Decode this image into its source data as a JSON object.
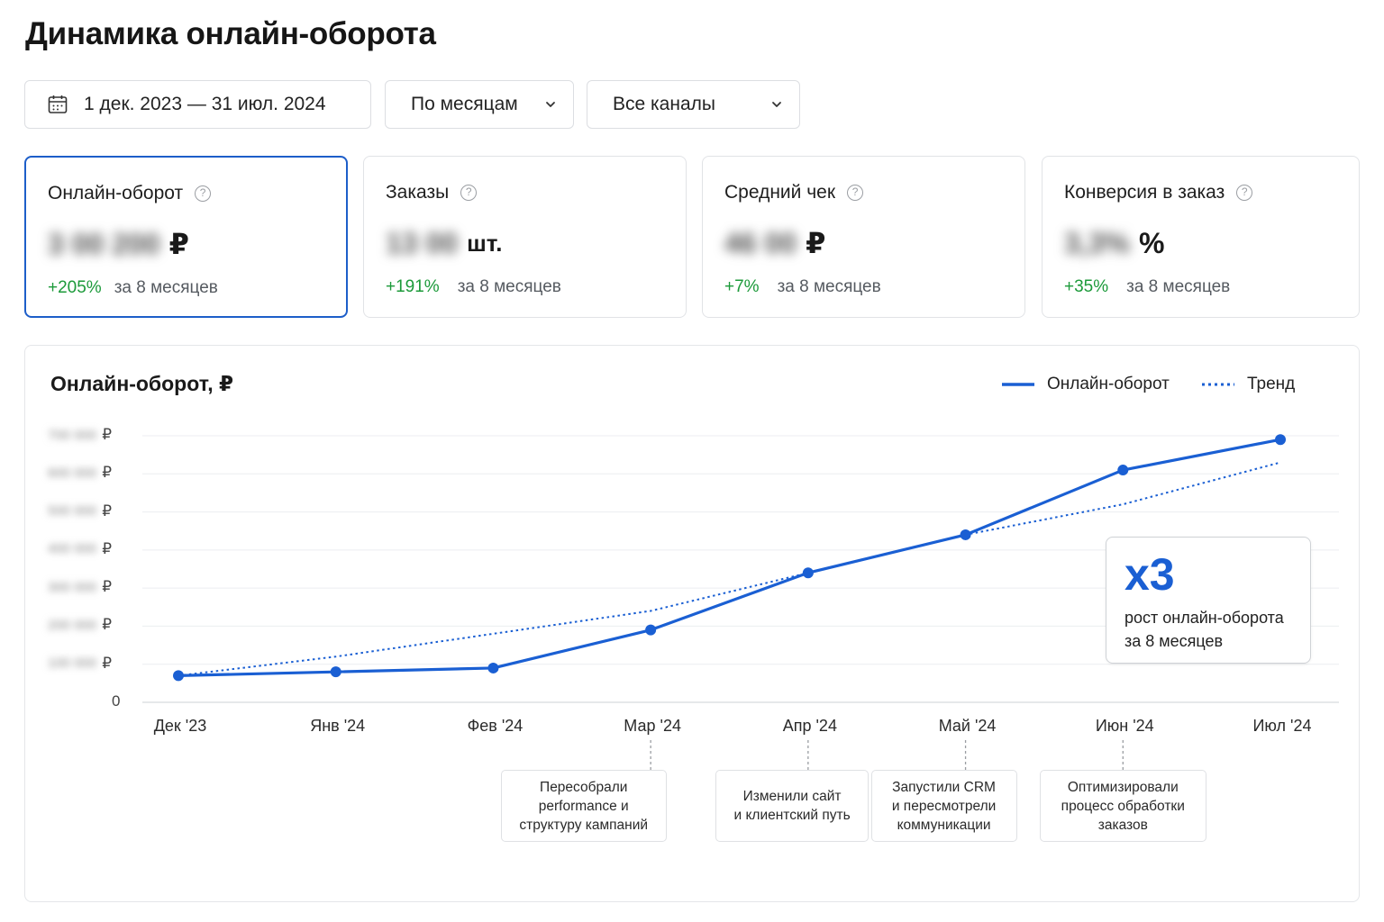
{
  "page": {
    "title": "Динамика онлайн-оборота"
  },
  "filters": {
    "date_range": "1 дек. 2023 — 31 июл. 2024",
    "period": "По месяцам",
    "channel": "Все каналы"
  },
  "kpis": [
    {
      "title": "Онлайн-оборот",
      "value_hidden": "3 00 200",
      "unit": "₽",
      "delta": "+205%",
      "period": "за 8 месяцев",
      "active": true
    },
    {
      "title": "Заказы",
      "value_hidden": "13 00",
      "unit": "шт.",
      "delta": "+191%",
      "period": "за 8 месяцев",
      "active": false
    },
    {
      "title": "Средний чек",
      "value_hidden": "46 00",
      "unit": "₽",
      "delta": "+7%",
      "period": "за 8 месяцев",
      "active": false
    },
    {
      "title": "Конверсия в заказ",
      "value_hidden": "3,3%",
      "unit": "%",
      "delta": "+35%",
      "period": "за 8 месяцев",
      "active": false
    }
  ],
  "icons": {
    "calendar": "calendar-icon",
    "chevron": "chevron-down-icon",
    "help": "help-circle-icon"
  },
  "colors": {
    "accent": "#1a5fd3",
    "positive": "#1c9a3a",
    "line": "#1a5fd3"
  },
  "chart_data": {
    "type": "line",
    "title": "Онлайн-оборот, ₽",
    "categories": [
      "Дек '23",
      "Янв '24",
      "Фев '24",
      "Мар '24",
      "Апр '24",
      "Май '24",
      "Июн '24",
      "Июл '24"
    ],
    "series": [
      {
        "name": "Онлайн-оборот",
        "style": "solid",
        "values": [
          0.7,
          0.8,
          0.9,
          1.9,
          3.4,
          4.4,
          6.1,
          6.9
        ]
      },
      {
        "name": "Тренд",
        "style": "dotted",
        "values": [
          0.7,
          1.2,
          1.8,
          2.4,
          3.4,
          4.4,
          5.2,
          6.3
        ]
      }
    ],
    "y_ticks": [
      {
        "hidden": "100 000",
        "unit": "₽"
      },
      {
        "hidden": "200 000",
        "unit": "₽"
      },
      {
        "hidden": "300 000",
        "unit": "₽"
      },
      {
        "hidden": "400 000",
        "unit": "₽"
      },
      {
        "hidden": "500 000",
        "unit": "₽"
      },
      {
        "hidden": "600 000",
        "unit": "₽"
      },
      {
        "hidden": "700 000",
        "unit": "₽"
      }
    ],
    "y_zero": "0",
    "ylim": [
      0,
      7
    ],
    "grid": true,
    "legend": "top-right",
    "annotations": [
      {
        "category": "Мар '24",
        "text": "Пересобрали\nperformance и\nструктуру кампаний"
      },
      {
        "category": "Апр '24",
        "text": "Изменили сайт\nи клиентский путь"
      },
      {
        "category": "Май '24",
        "text": "Запустили CRM\nи пересмотрели\nкоммуникации"
      },
      {
        "category": "Июн '24",
        "text": "Оптимизировали\nпроцесс обработки\nзаказов"
      }
    ],
    "callout": {
      "big": "x3",
      "text": "рост онлайн-оборота\nза 8 месяцев"
    }
  }
}
